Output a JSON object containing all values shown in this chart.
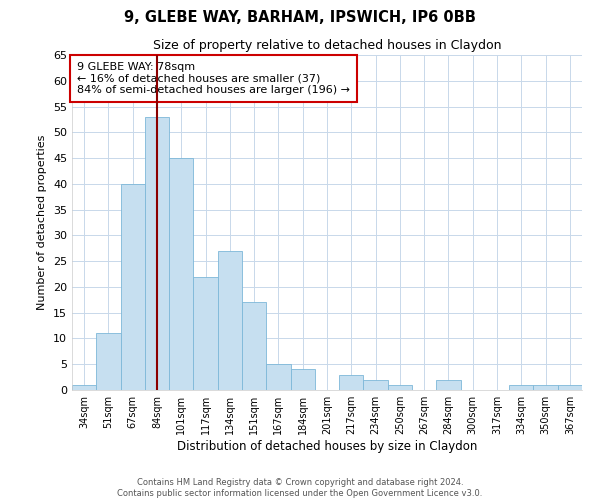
{
  "title": "9, GLEBE WAY, BARHAM, IPSWICH, IP6 0BB",
  "subtitle": "Size of property relative to detached houses in Claydon",
  "xlabel": "Distribution of detached houses by size in Claydon",
  "ylabel": "Number of detached properties",
  "bin_labels": [
    "34sqm",
    "51sqm",
    "67sqm",
    "84sqm",
    "101sqm",
    "117sqm",
    "134sqm",
    "151sqm",
    "167sqm",
    "184sqm",
    "201sqm",
    "217sqm",
    "234sqm",
    "250sqm",
    "267sqm",
    "284sqm",
    "300sqm",
    "317sqm",
    "334sqm",
    "350sqm",
    "367sqm"
  ],
  "bar_values": [
    1,
    11,
    40,
    53,
    45,
    22,
    27,
    17,
    5,
    4,
    0,
    3,
    2,
    1,
    0,
    2,
    0,
    0,
    1,
    1,
    1
  ],
  "bar_color": "#c6dff0",
  "bar_edge_color": "#7db8d8",
  "vline_color": "#8b0000",
  "ylim": [
    0,
    65
  ],
  "yticks": [
    0,
    5,
    10,
    15,
    20,
    25,
    30,
    35,
    40,
    45,
    50,
    55,
    60,
    65
  ],
  "annotation_title": "9 GLEBE WAY: 78sqm",
  "annotation_line1": "← 16% of detached houses are smaller (37)",
  "annotation_line2": "84% of semi-detached houses are larger (196) →",
  "annotation_box_color": "#ffffff",
  "annotation_box_edge": "#cc0000",
  "footer_line1": "Contains HM Land Registry data © Crown copyright and database right 2024.",
  "footer_line2": "Contains public sector information licensed under the Open Government Licence v3.0.",
  "background_color": "#ffffff",
  "grid_color": "#c8d8ea"
}
